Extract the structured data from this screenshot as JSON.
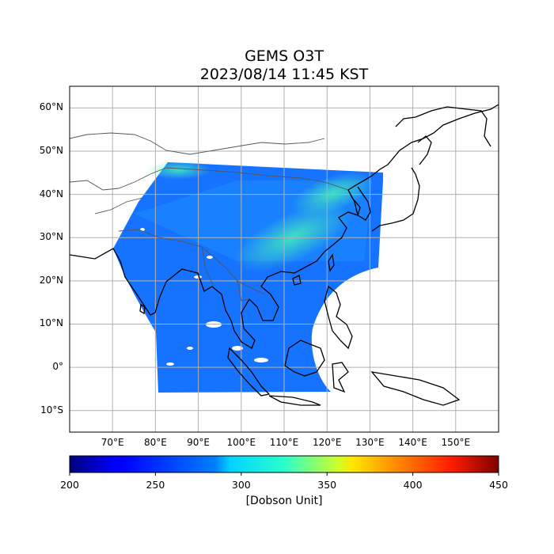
{
  "title": {
    "line1": "GEMS O3T",
    "line2": "2023/08/14 11:45 KST"
  },
  "map": {
    "lat_ticks": [
      {
        "value": 60,
        "label": "60°N"
      },
      {
        "value": 50,
        "label": "50°N"
      },
      {
        "value": 40,
        "label": "40°N"
      },
      {
        "value": 30,
        "label": "30°N"
      },
      {
        "value": 20,
        "label": "20°N"
      },
      {
        "value": 10,
        "label": "10°N"
      },
      {
        "value": 0,
        "label": "0°"
      },
      {
        "value": -10,
        "label": "10°S"
      }
    ],
    "lon_ticks": [
      {
        "value": 70,
        "label": "70°E"
      },
      {
        "value": 80,
        "label": "80°E"
      },
      {
        "value": 90,
        "label": "90°E"
      },
      {
        "value": 100,
        "label": "100°E"
      },
      {
        "value": 110,
        "label": "110°E"
      },
      {
        "value": 120,
        "label": "120°E"
      },
      {
        "value": 130,
        "label": "130°E"
      },
      {
        "value": 140,
        "label": "140°E"
      },
      {
        "value": 150,
        "label": "150°E"
      }
    ],
    "lon_range": [
      60,
      160
    ],
    "lat_range": [
      -15,
      65
    ],
    "grid": true
  },
  "colorbar": {
    "colormap": "jet",
    "min": 200,
    "max": 450,
    "ticks": [
      "200",
      "250",
      "300",
      "350",
      "400",
      "450"
    ],
    "label": "[Dobson Unit]"
  }
}
